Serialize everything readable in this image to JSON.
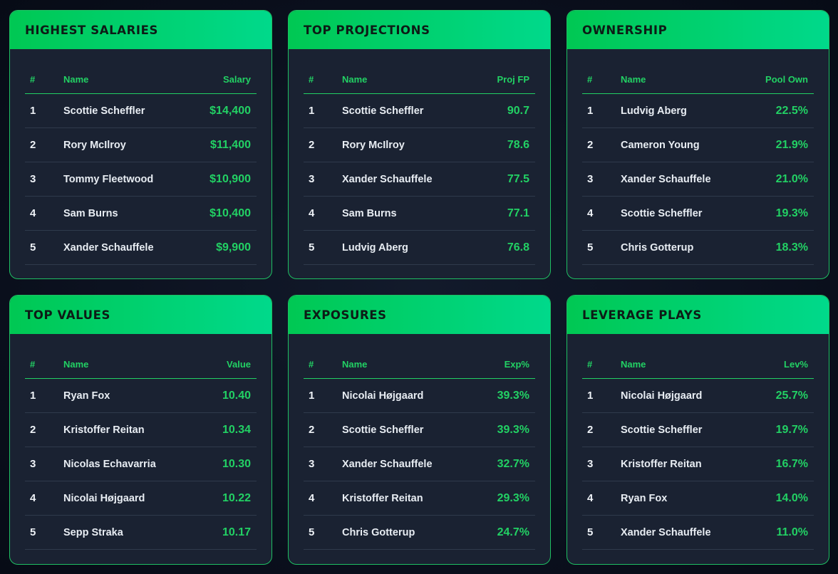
{
  "accent_color": "#22d164",
  "header_gradient": [
    "#00c853",
    "#00d98b"
  ],
  "panels": [
    {
      "title": "HIGHEST SALARIES",
      "columns": {
        "rank": "#",
        "name": "Name",
        "value": "Salary"
      },
      "rows": [
        {
          "rank": "1",
          "name": "Scottie Scheffler",
          "value": "$14,400"
        },
        {
          "rank": "2",
          "name": "Rory McIlroy",
          "value": "$11,400"
        },
        {
          "rank": "3",
          "name": "Tommy Fleetwood",
          "value": "$10,900"
        },
        {
          "rank": "4",
          "name": "Sam Burns",
          "value": "$10,400"
        },
        {
          "rank": "5",
          "name": "Xander Schauffele",
          "value": "$9,900"
        }
      ]
    },
    {
      "title": "TOP PROJECTIONS",
      "columns": {
        "rank": "#",
        "name": "Name",
        "value": "Proj FP"
      },
      "rows": [
        {
          "rank": "1",
          "name": "Scottie Scheffler",
          "value": "90.7"
        },
        {
          "rank": "2",
          "name": "Rory McIlroy",
          "value": "78.6"
        },
        {
          "rank": "3",
          "name": "Xander Schauffele",
          "value": "77.5"
        },
        {
          "rank": "4",
          "name": "Sam Burns",
          "value": "77.1"
        },
        {
          "rank": "5",
          "name": "Ludvig Aberg",
          "value": "76.8"
        }
      ]
    },
    {
      "title": "OWNERSHIP",
      "columns": {
        "rank": "#",
        "name": "Name",
        "value": "Pool Own"
      },
      "rows": [
        {
          "rank": "1",
          "name": "Ludvig Aberg",
          "value": "22.5%"
        },
        {
          "rank": "2",
          "name": "Cameron Young",
          "value": "21.9%"
        },
        {
          "rank": "3",
          "name": "Xander Schauffele",
          "value": "21.0%"
        },
        {
          "rank": "4",
          "name": "Scottie Scheffler",
          "value": "19.3%"
        },
        {
          "rank": "5",
          "name": "Chris Gotterup",
          "value": "18.3%"
        }
      ]
    },
    {
      "title": "TOP VALUES",
      "columns": {
        "rank": "#",
        "name": "Name",
        "value": "Value"
      },
      "rows": [
        {
          "rank": "1",
          "name": "Ryan Fox",
          "value": "10.40"
        },
        {
          "rank": "2",
          "name": "Kristoffer Reitan",
          "value": "10.34"
        },
        {
          "rank": "3",
          "name": "Nicolas Echavarria",
          "value": "10.30"
        },
        {
          "rank": "4",
          "name": "Nicolai Højgaard",
          "value": "10.22"
        },
        {
          "rank": "5",
          "name": "Sepp Straka",
          "value": "10.17"
        }
      ]
    },
    {
      "title": "EXPOSURES",
      "columns": {
        "rank": "#",
        "name": "Name",
        "value": "Exp%"
      },
      "rows": [
        {
          "rank": "1",
          "name": "Nicolai Højgaard",
          "value": "39.3%"
        },
        {
          "rank": "2",
          "name": "Scottie Scheffler",
          "value": "39.3%"
        },
        {
          "rank": "3",
          "name": "Xander Schauffele",
          "value": "32.7%"
        },
        {
          "rank": "4",
          "name": "Kristoffer Reitan",
          "value": "29.3%"
        },
        {
          "rank": "5",
          "name": "Chris Gotterup",
          "value": "24.7%"
        }
      ]
    },
    {
      "title": "LEVERAGE PLAYS",
      "columns": {
        "rank": "#",
        "name": "Name",
        "value": "Lev%"
      },
      "rows": [
        {
          "rank": "1",
          "name": "Nicolai Højgaard",
          "value": "25.7%"
        },
        {
          "rank": "2",
          "name": "Scottie Scheffler",
          "value": "19.7%"
        },
        {
          "rank": "3",
          "name": "Kristoffer Reitan",
          "value": "16.7%"
        },
        {
          "rank": "4",
          "name": "Ryan Fox",
          "value": "14.0%"
        },
        {
          "rank": "5",
          "name": "Xander Schauffele",
          "value": "11.0%"
        }
      ]
    }
  ]
}
